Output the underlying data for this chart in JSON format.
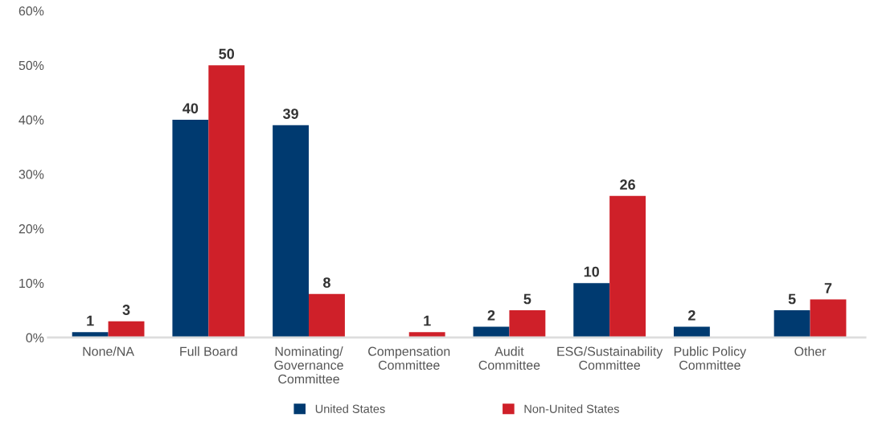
{
  "chart_data": {
    "type": "bar",
    "categories": [
      "None/NA",
      "Full Board",
      "Nominating/\nGovernance\nCommittee",
      "Compensation\nCommittee",
      "Audit\nCommittee",
      "ESG/Sustainability\nCommittee",
      "Public Policy\nCommittee",
      "Other"
    ],
    "series": [
      {
        "name": "United States",
        "color": "#003a70",
        "values": [
          1,
          40,
          39,
          null,
          2,
          10,
          2,
          5
        ]
      },
      {
        "name": "Non-United States",
        "color": "#cf2029",
        "values": [
          3,
          50,
          8,
          1,
          5,
          26,
          null,
          7
        ]
      }
    ],
    "ylim": [
      0,
      60
    ],
    "yticks": [
      {
        "value": 0,
        "label": "0%"
      },
      {
        "value": 10,
        "label": "10%"
      },
      {
        "value": 20,
        "label": "20%"
      },
      {
        "value": 30,
        "label": "30%"
      },
      {
        "value": 40,
        "label": "40%"
      },
      {
        "value": 50,
        "label": "50%"
      },
      {
        "value": 60,
        "label": "60%"
      }
    ],
    "data_labels": true,
    "grid": false,
    "legend": "bottom"
  }
}
